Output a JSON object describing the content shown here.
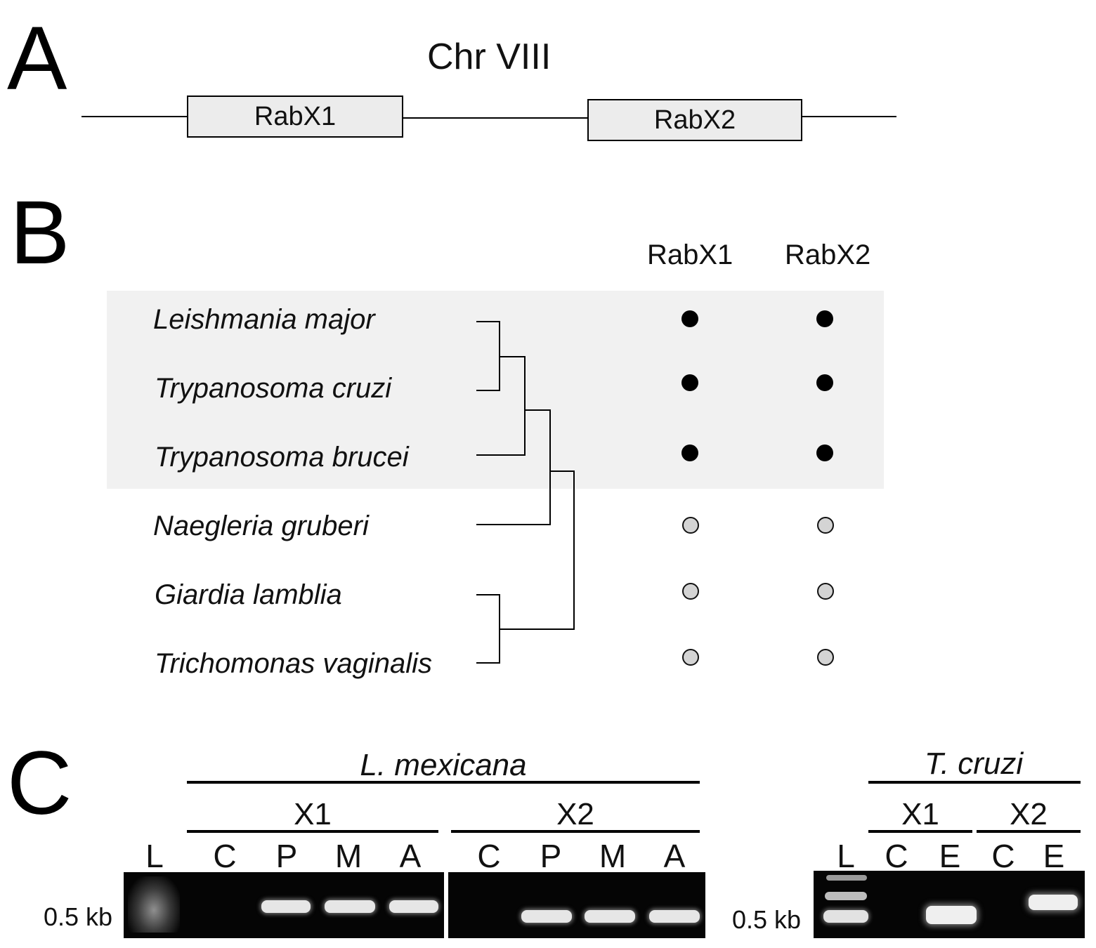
{
  "panels": {
    "a": "A",
    "b": "B",
    "c": "C"
  },
  "panel_a": {
    "chromosome": "Chr VIII",
    "genes": [
      "RabX1",
      "RabX2"
    ]
  },
  "panel_b": {
    "columns": [
      "RabX1",
      "RabX2"
    ],
    "species": [
      {
        "name": "Leishmania major",
        "rabx1": "filled",
        "rabx2": "filled"
      },
      {
        "name": "Trypanosoma cruzi",
        "rabx1": "filled",
        "rabx2": "filled"
      },
      {
        "name": "Trypanosoma brucei",
        "rabx1": "filled",
        "rabx2": "filled"
      },
      {
        "name": "Naegleria gruberi",
        "rabx1": "open",
        "rabx2": "open"
      },
      {
        "name": "Giardia lamblia",
        "rabx1": "open",
        "rabx2": "open"
      },
      {
        "name": "Trichomonas vaginalis",
        "rabx1": "open",
        "rabx2": "open"
      }
    ],
    "highlight_color": "#f1f1f1"
  },
  "panel_c": {
    "left": {
      "organism": "L. mexicana",
      "groups": [
        {
          "label": "X1",
          "lanes": [
            "C",
            "P",
            "M",
            "A"
          ]
        },
        {
          "label": "X2",
          "lanes": [
            "C",
            "P",
            "M",
            "A"
          ]
        }
      ],
      "ladder_label": "L",
      "marker": "0.5 kb"
    },
    "right": {
      "organism": "T. cruzi",
      "groups": [
        {
          "label": "X1",
          "lanes": [
            "C",
            "E"
          ]
        },
        {
          "label": "X2",
          "lanes": [
            "C",
            "E"
          ]
        }
      ],
      "ladder_label": "L",
      "marker": "0.5 kb"
    }
  }
}
